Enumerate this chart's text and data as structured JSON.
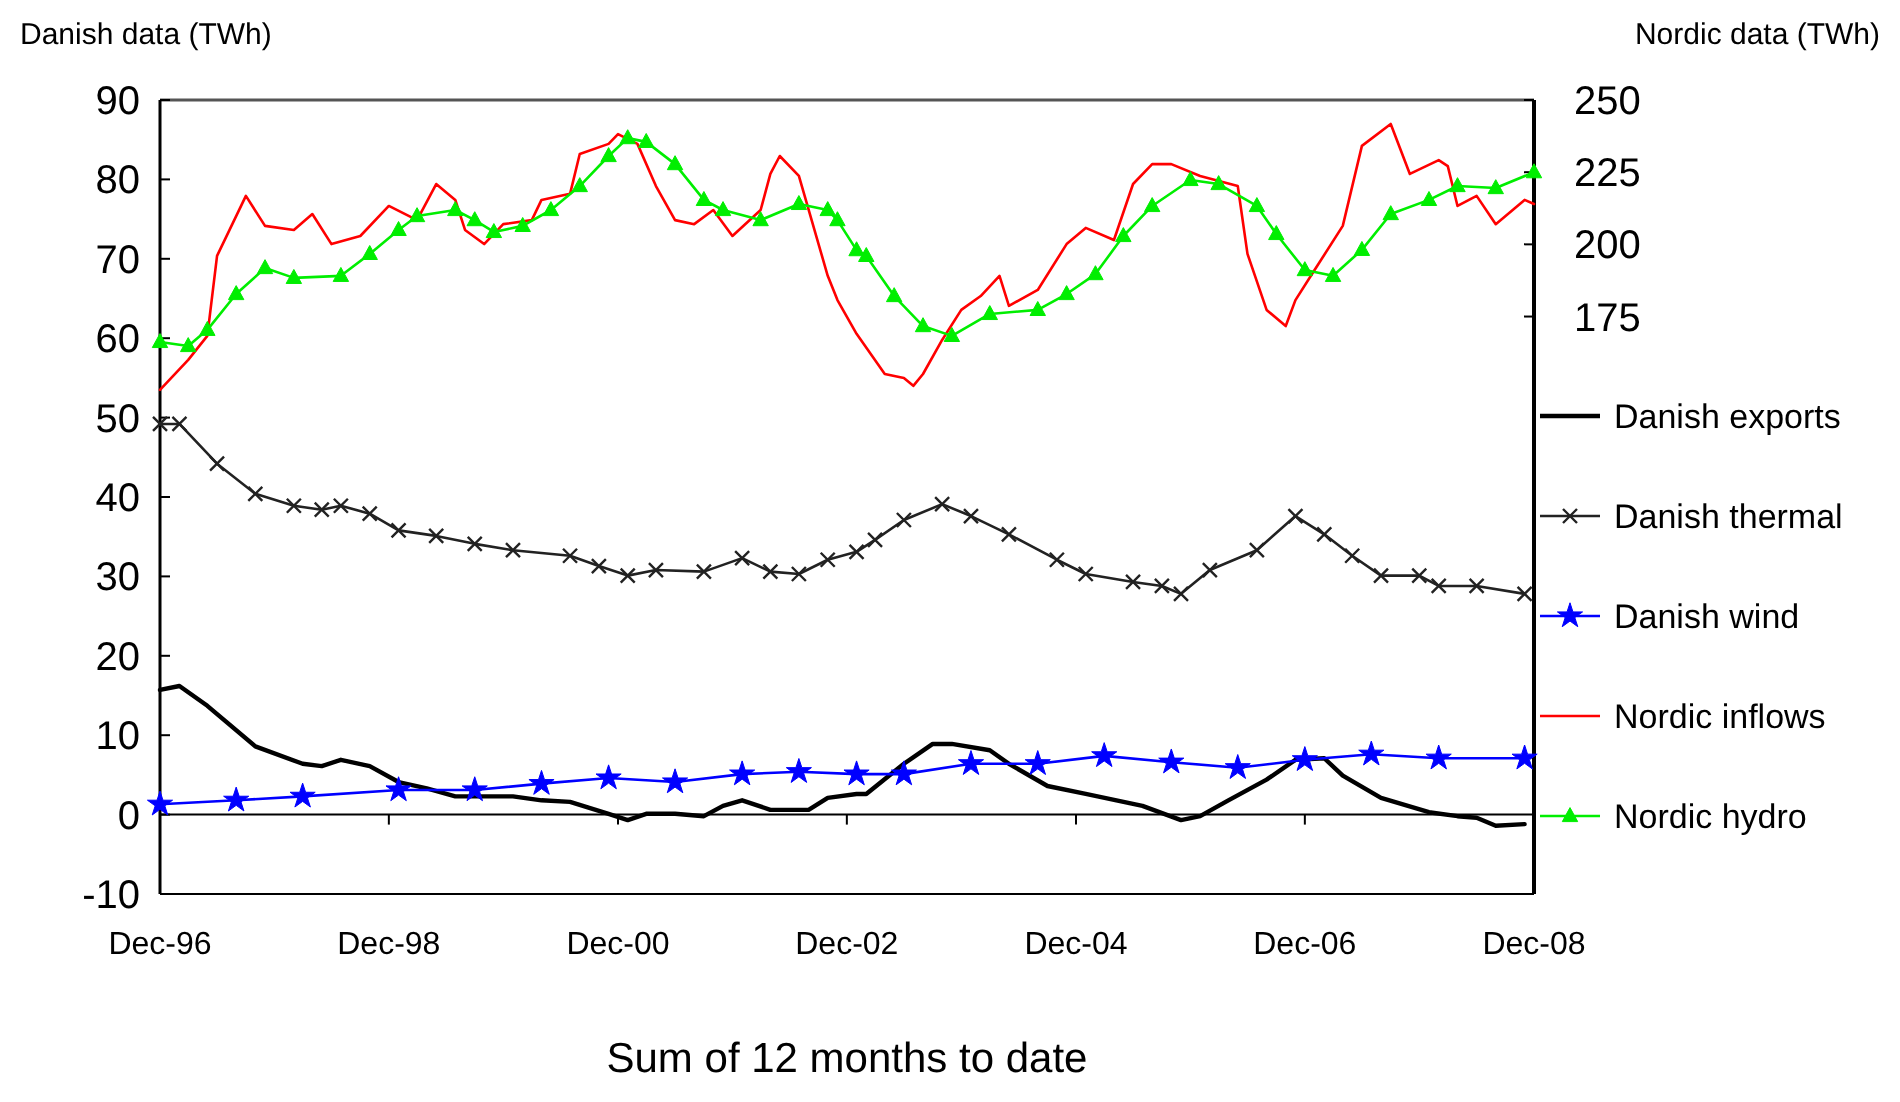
{
  "chart_data": {
    "type": "line",
    "xlabel": "Sum of 12 months to date",
    "ylabel": "Danish data (TWh)",
    "y2label": "Nordic data (TWh)",
    "legend": "right",
    "xlim": [
      "1996-12",
      "2008-12"
    ],
    "xticks": [
      {
        "value": "1996-12",
        "label": "Dec-96"
      },
      {
        "value": "1998-12",
        "label": "Dec-98"
      },
      {
        "value": "2000-12",
        "label": "Dec-00"
      },
      {
        "value": "2002-12",
        "label": "Dec-02"
      },
      {
        "value": "2004-12",
        "label": "Dec-04"
      },
      {
        "value": "2006-12",
        "label": "Dec-06"
      },
      {
        "value": "2008-12",
        "label": "Dec-08"
      }
    ],
    "ylim": [
      -10,
      90
    ],
    "yticks": [
      -10,
      0,
      10,
      20,
      30,
      40,
      50,
      60,
      70,
      80,
      90
    ],
    "y2lim": [
      -25,
      250
    ],
    "y2ticks": [
      175,
      200,
      225,
      250
    ],
    "series": [
      {
        "name": "Danish exports",
        "color": "#000000",
        "marker": "none",
        "x": [
          "1996-12",
          "1997-02",
          "1997-05",
          "1997-10",
          "1998-03",
          "1998-05",
          "1998-07",
          "1998-10",
          "1999-01",
          "1999-04",
          "1999-07",
          "1999-11",
          "2000-01",
          "2000-04",
          "2000-07",
          "2000-11",
          "2001-01",
          "2001-03",
          "2001-06",
          "2001-09",
          "2001-11",
          "2002-01",
          "2002-04",
          "2002-08",
          "2002-10",
          "2003-01",
          "2003-02",
          "2003-06",
          "2003-09",
          "2003-11",
          "2004-03",
          "2004-05",
          "2004-09",
          "2005-01",
          "2005-07",
          "2005-11",
          "2006-01",
          "2006-04",
          "2006-08",
          "2006-11",
          "2007-02",
          "2007-04",
          "2007-08",
          "2008-01",
          "2008-04",
          "2008-06",
          "2008-08",
          "2008-11"
        ],
        "values": [
          15.7,
          16.2,
          13.7,
          8.6,
          6.4,
          6.1,
          6.9,
          6.1,
          4.1,
          3.3,
          2.3,
          2.3,
          2.3,
          1.8,
          1.6,
          0.1,
          -0.7,
          0.1,
          0.1,
          -0.2,
          1.1,
          1.8,
          0.6,
          0.6,
          2.1,
          2.6,
          2.6,
          6.4,
          8.9,
          8.9,
          8.1,
          6.4,
          3.6,
          2.6,
          1.1,
          -0.7,
          -0.2,
          1.8,
          4.4,
          6.9,
          7.1,
          4.9,
          2.1,
          0.3,
          -0.2,
          -0.4,
          -1.4,
          -1.2
        ]
      },
      {
        "name": "Danish thermal",
        "color": "#222222",
        "marker": "cross",
        "x": [
          "1996-12",
          "1997-02",
          "1997-06",
          "1997-10",
          "1998-02",
          "1998-05",
          "1998-07",
          "1998-10",
          "1999-01",
          "1999-05",
          "1999-09",
          "2000-01",
          "2000-07",
          "2000-10",
          "2001-01",
          "2001-04",
          "2001-09",
          "2002-01",
          "2002-04",
          "2002-07",
          "2002-10",
          "2003-01",
          "2003-03",
          "2003-06",
          "2003-10",
          "2004-01",
          "2004-05",
          "2004-10",
          "2005-01",
          "2005-06",
          "2005-09",
          "2005-11",
          "2006-02",
          "2006-07",
          "2006-11",
          "2007-02",
          "2007-05",
          "2007-08",
          "2007-12",
          "2008-02",
          "2008-06",
          "2008-11"
        ],
        "values": [
          49.2,
          49.2,
          44.2,
          40.4,
          38.9,
          38.4,
          38.9,
          37.9,
          35.8,
          35.1,
          34.1,
          33.3,
          32.6,
          31.3,
          30.1,
          30.8,
          30.6,
          32.3,
          30.6,
          30.3,
          32.1,
          33.1,
          34.6,
          37.1,
          39.1,
          37.6,
          35.3,
          32.1,
          30.3,
          29.3,
          28.8,
          27.8,
          30.8,
          33.3,
          37.6,
          35.3,
          32.6,
          30.1,
          30.1,
          28.8,
          28.8,
          27.8
        ]
      },
      {
        "name": "Danish wind",
        "color": "#0000ff",
        "marker": "star",
        "x": [
          "1996-12",
          "1997-08",
          "1998-03",
          "1999-01",
          "1999-09",
          "2000-04",
          "2000-11",
          "2001-06",
          "2002-01",
          "2002-07",
          "2003-01",
          "2003-06",
          "2004-01",
          "2004-08",
          "2005-03",
          "2005-10",
          "2006-05",
          "2006-12",
          "2007-07",
          "2008-02",
          "2008-11"
        ],
        "values": [
          1.3,
          1.8,
          2.3,
          3.1,
          3.1,
          3.9,
          4.6,
          4.1,
          5.1,
          5.4,
          5.1,
          5.1,
          6.4,
          6.4,
          7.4,
          6.6,
          5.9,
          6.9,
          7.6,
          7.1,
          7.1
        ]
      },
      {
        "name": "Nordic inflows",
        "color": "#ff0000",
        "marker": "none",
        "axis": "y2",
        "x": [
          "1996-12",
          "1997-03",
          "1997-05",
          "1997-06",
          "1997-09",
          "1997-11",
          "1998-02",
          "1998-04",
          "1998-06",
          "1998-09",
          "1998-12",
          "1999-03",
          "1999-05",
          "1999-07",
          "1999-08",
          "1999-10",
          "1999-12",
          "2000-03",
          "2000-04",
          "2000-07",
          "2000-08",
          "2000-11",
          "2000-12",
          "2001-02",
          "2001-04",
          "2001-06",
          "2001-08",
          "2001-10",
          "2001-12",
          "2002-03",
          "2002-04",
          "2002-05",
          "2002-07",
          "2002-10",
          "2002-11",
          "2003-01",
          "2003-04",
          "2003-06",
          "2003-07",
          "2003-08",
          "2003-10",
          "2003-12",
          "2004-02",
          "2004-04",
          "2004-05",
          "2004-08",
          "2004-11",
          "2005-01",
          "2005-04",
          "2005-06",
          "2005-08",
          "2005-10",
          "2006-01",
          "2006-05",
          "2006-06",
          "2006-08",
          "2006-10",
          "2006-11",
          "2007-01",
          "2007-04",
          "2007-06",
          "2007-09",
          "2007-11",
          "2008-02",
          "2008-03",
          "2008-04",
          "2008-06",
          "2008-08",
          "2008-11",
          "2008-12"
        ],
        "values": [
          149.6,
          160,
          168.3,
          196,
          216.8,
          206.4,
          205,
          210.5,
          200.1,
          202.9,
          213.3,
          208.4,
          220.9,
          215.4,
          205,
          200.1,
          207,
          208.4,
          215.4,
          217.5,
          231.3,
          234.8,
          238.2,
          234.8,
          220.2,
          208.4,
          207,
          211.9,
          202.9,
          211.9,
          224.4,
          230.6,
          223.7,
          189.1,
          180.7,
          169,
          155.1,
          153.7,
          151,
          155.1,
          166.9,
          177.3,
          182.1,
          189.1,
          178.7,
          184.2,
          200.1,
          205.7,
          201.5,
          220.9,
          227.8,
          227.8,
          223.7,
          220.2,
          196.7,
          177.3,
          171.7,
          180.7,
          191.1,
          206.4,
          234.1,
          241.7,
          224.4,
          229.2,
          227.1,
          213.3,
          216.8,
          207,
          215.4,
          214
        ]
      },
      {
        "name": "Nordic hydro",
        "color": "#00ee00",
        "marker": "triangle",
        "axis": "y2",
        "x": [
          "1996-12",
          "1997-03",
          "1997-05",
          "1997-08",
          "1997-11",
          "1998-02",
          "1998-07",
          "1998-10",
          "1999-01",
          "1999-03",
          "1999-07",
          "1999-09",
          "1999-11",
          "2000-02",
          "2000-05",
          "2000-08",
          "2000-11",
          "2001-01",
          "2001-03",
          "2001-06",
          "2001-09",
          "2001-11",
          "2002-03",
          "2002-07",
          "2002-10",
          "2002-11",
          "2003-01",
          "2003-02",
          "2003-05",
          "2003-08",
          "2003-11",
          "2004-03",
          "2004-08",
          "2004-11",
          "2005-02",
          "2005-05",
          "2005-08",
          "2005-12",
          "2006-03",
          "2006-07",
          "2006-09",
          "2006-12",
          "2007-03",
          "2007-06",
          "2007-09",
          "2008-01",
          "2008-04",
          "2008-08",
          "2008-12"
        ],
        "values": [
          166.2,
          164.8,
          170.4,
          182.8,
          191.8,
          188.4,
          189.1,
          196.7,
          205,
          209.8,
          211.9,
          208.4,
          204.3,
          206.4,
          211.9,
          220.2,
          230.6,
          236.8,
          235.5,
          227.8,
          215.4,
          211.9,
          208.4,
          214,
          211.9,
          208.4,
          198,
          196,
          182.1,
          171.7,
          168.3,
          175.9,
          177.3,
          182.8,
          189.7,
          202.9,
          213.3,
          222.3,
          220.9,
          213.3,
          203.6,
          191.1,
          189.1,
          198.1,
          210.5,
          215.4,
          220.2,
          219.5,
          225
        ]
      }
    ]
  }
}
